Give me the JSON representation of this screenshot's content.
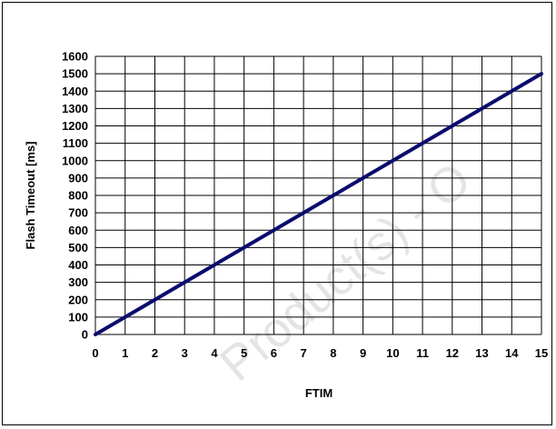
{
  "chart_data": {
    "type": "line",
    "title": "",
    "xlabel": "FTIM",
    "ylabel": "Flash Timeout [ms]",
    "xlim": [
      0,
      15
    ],
    "ylim": [
      0,
      1600
    ],
    "x_ticks": [
      0,
      1,
      2,
      3,
      4,
      5,
      6,
      7,
      8,
      9,
      10,
      11,
      12,
      13,
      14,
      15
    ],
    "y_ticks": [
      0,
      100,
      200,
      300,
      400,
      500,
      600,
      700,
      800,
      900,
      1000,
      1100,
      1200,
      1300,
      1400,
      1500,
      1600
    ],
    "grid": true,
    "legend": "none",
    "series": [
      {
        "color": "#0b0b6e",
        "x": [
          0,
          1,
          2,
          3,
          4,
          5,
          6,
          7,
          8,
          9,
          10,
          11,
          12,
          13,
          14,
          15
        ],
        "y": [
          0,
          100,
          200,
          300,
          400,
          500,
          600,
          700,
          800,
          900,
          1000,
          1100,
          1200,
          1300,
          1400,
          1500
        ]
      }
    ]
  },
  "watermark": "Product(s) - O"
}
